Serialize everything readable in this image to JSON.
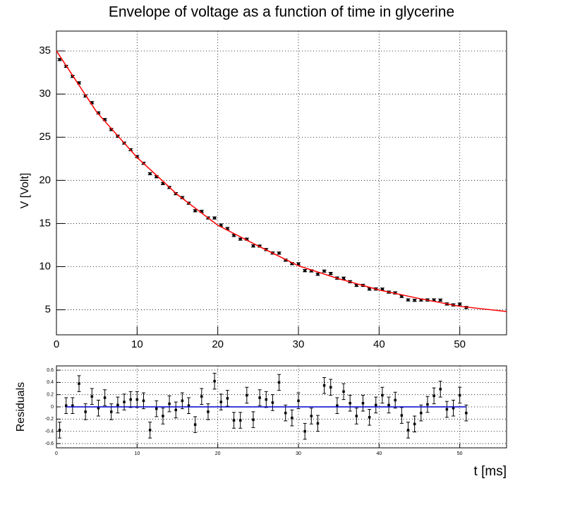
{
  "chart_data": [
    {
      "type": "scatter",
      "title": "Envelope of voltage as a function of time in glycerine",
      "y_label": "V [Volt]",
      "xlim": [
        0,
        55.8
      ],
      "ylim": [
        2.1,
        37.3
      ],
      "xticks": [
        0,
        10,
        20,
        30,
        40,
        50
      ],
      "yticks": [
        5,
        10,
        15,
        20,
        25,
        30,
        35
      ],
      "grid": true,
      "series": [
        {
          "color": "#000000",
          "style": "points",
          "x": [
            0.4,
            1.2,
            2.0,
            2.8,
            3.6,
            4.4,
            5.2,
            6.0,
            6.8,
            7.6,
            8.4,
            9.2,
            10.0,
            10.8,
            11.6,
            12.4,
            13.2,
            14.0,
            14.8,
            15.6,
            16.4,
            17.2,
            18.0,
            18.8,
            19.6,
            20.4,
            21.2,
            22.0,
            22.8,
            23.6,
            24.4,
            25.2,
            26.0,
            26.8,
            27.6,
            28.4,
            29.2,
            30.0,
            30.8,
            31.6,
            32.4,
            33.2,
            34.0,
            34.8,
            35.6,
            36.4,
            37.2,
            38.0,
            38.8,
            39.6,
            40.4,
            41.2,
            42.0,
            42.8,
            43.6,
            44.4,
            45.2,
            46.0,
            46.8,
            47.6,
            48.4,
            49.2,
            50.0,
            50.8
          ],
          "values": [
            34.0,
            33.21,
            32.05,
            31.3,
            29.78,
            29.0,
            27.82,
            27.04,
            25.89,
            25.12,
            24.32,
            23.55,
            22.76,
            21.98,
            20.77,
            20.42,
            19.63,
            19.18,
            18.46,
            18.0,
            17.35,
            16.48,
            16.4,
            15.64,
            15.64,
            14.82,
            14.42,
            13.62,
            13.19,
            13.19,
            12.4,
            12.38,
            11.98,
            11.58,
            11.57,
            10.75,
            10.35,
            10.33,
            9.54,
            9.51,
            9.12,
            9.48,
            9.21,
            8.67,
            8.66,
            8.25,
            7.83,
            7.83,
            7.4,
            7.41,
            7.39,
            7.05,
            6.96,
            6.55,
            6.15,
            6.1,
            6.14,
            6.14,
            6.14,
            6.12,
            5.67,
            5.57,
            5.66,
            5.26
          ],
          "errors": [
            0.13,
            0.13,
            0.13,
            0.13,
            0.13,
            0.13,
            0.13,
            0.13,
            0.13,
            0.13,
            0.13,
            0.13,
            0.13,
            0.13,
            0.13,
            0.13,
            0.13,
            0.13,
            0.13,
            0.13,
            0.13,
            0.13,
            0.13,
            0.13,
            0.13,
            0.13,
            0.13,
            0.13,
            0.13,
            0.13,
            0.13,
            0.13,
            0.13,
            0.13,
            0.13,
            0.13,
            0.13,
            0.13,
            0.13,
            0.13,
            0.13,
            0.13,
            0.13,
            0.13,
            0.13,
            0.13,
            0.13,
            0.13,
            0.13,
            0.13,
            0.13,
            0.13,
            0.13,
            0.13,
            0.13,
            0.13,
            0.13,
            0.13,
            0.13,
            0.13,
            0.13,
            0.13,
            0.13,
            0.13
          ]
        },
        {
          "color": "#ff0000",
          "style": "line",
          "x": [
            0,
            5,
            10,
            15,
            20,
            25,
            30,
            35,
            40,
            45,
            50,
            55.8
          ],
          "values": [
            35.0,
            27.9,
            22.65,
            18.35,
            14.8,
            12.4,
            10.1,
            8.6,
            7.3,
            6.3,
            5.4,
            4.8
          ]
        }
      ]
    },
    {
      "type": "scatter",
      "y_label": "Residuals",
      "x_label": "t [ms]",
      "xlim": [
        0,
        55.8
      ],
      "ylim": [
        -0.67,
        0.67
      ],
      "xticks": [
        0,
        10,
        20,
        30,
        40,
        50
      ],
      "yticks": [
        -0.6,
        -0.4,
        -0.2,
        0,
        0.2,
        0.4,
        0.6
      ],
      "grid": true,
      "series": [
        {
          "color": "#000000",
          "style": "points",
          "x": [
            0.4,
            1.2,
            2.0,
            2.8,
            3.6,
            4.4,
            5.2,
            6.0,
            6.8,
            7.6,
            8.4,
            9.2,
            10.0,
            10.8,
            11.6,
            12.4,
            13.2,
            14.0,
            14.8,
            15.6,
            16.4,
            17.2,
            18.0,
            18.8,
            19.6,
            20.4,
            21.2,
            22.0,
            22.8,
            23.6,
            24.4,
            25.2,
            26.0,
            26.8,
            27.6,
            28.4,
            29.2,
            30.0,
            30.8,
            31.6,
            32.4,
            33.2,
            34.0,
            34.8,
            35.6,
            36.4,
            37.2,
            38.0,
            38.8,
            39.6,
            40.4,
            41.2,
            42.0,
            42.8,
            43.6,
            44.4,
            45.2,
            46.0,
            46.8,
            47.6,
            48.4,
            49.2,
            50.0,
            50.8
          ],
          "values": [
            -0.38,
            0.02,
            0.02,
            0.38,
            -0.08,
            0.17,
            -0.02,
            0.15,
            -0.08,
            0.03,
            0.08,
            0.12,
            0.12,
            0.1,
            -0.38,
            -0.03,
            -0.15,
            0.05,
            -0.05,
            0.1,
            0.02,
            -0.29,
            0.17,
            -0.08,
            0.42,
            0.08,
            0.14,
            -0.22,
            -0.22,
            0.19,
            -0.21,
            0.15,
            0.12,
            0.07,
            0.4,
            -0.1,
            -0.18,
            0.1,
            -0.4,
            -0.15,
            -0.27,
            0.35,
            0.32,
            0.02,
            0.25,
            0.06,
            -0.15,
            0.06,
            -0.17,
            0.03,
            0.19,
            0.03,
            0.11,
            -0.14,
            -0.38,
            -0.28,
            -0.1,
            0.04,
            0.18,
            0.29,
            -0.04,
            -0.02,
            0.19,
            -0.1
          ],
          "errors": [
            0.13,
            0.13,
            0.13,
            0.13,
            0.13,
            0.13,
            0.13,
            0.13,
            0.13,
            0.13,
            0.13,
            0.13,
            0.13,
            0.13,
            0.13,
            0.13,
            0.13,
            0.13,
            0.13,
            0.13,
            0.13,
            0.13,
            0.13,
            0.13,
            0.13,
            0.13,
            0.13,
            0.13,
            0.13,
            0.13,
            0.13,
            0.13,
            0.13,
            0.13,
            0.13,
            0.13,
            0.13,
            0.13,
            0.13,
            0.13,
            0.13,
            0.13,
            0.13,
            0.13,
            0.13,
            0.13,
            0.13,
            0.13,
            0.13,
            0.13,
            0.13,
            0.13,
            0.13,
            0.13,
            0.13,
            0.13,
            0.13,
            0.13,
            0.13,
            0.13,
            0.13,
            0.13,
            0.13,
            0.13
          ]
        },
        {
          "color": "#0000cc",
          "style": "line",
          "x": [
            1.2,
            50.8
          ],
          "values": [
            0,
            0
          ]
        }
      ]
    }
  ]
}
